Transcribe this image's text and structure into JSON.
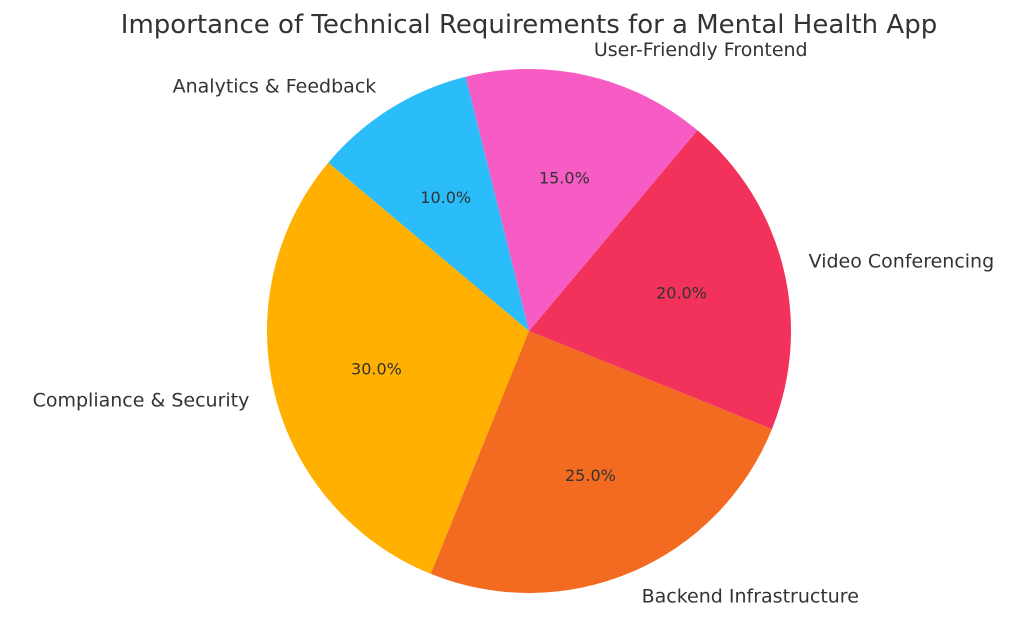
{
  "chart_data": {
    "type": "pie",
    "title": "Importance of Technical Requirements for a Mental Health App",
    "start_angle_deg": 140,
    "direction": "counterclockwise",
    "slices": [
      {
        "label": "Compliance & Security",
        "value": 30.0,
        "pct_label": "30.0%",
        "color": "#FFB000"
      },
      {
        "label": "Backend Infrastructure",
        "value": 25.0,
        "pct_label": "25.0%",
        "color": "#F26B21"
      },
      {
        "label": "Video Conferencing",
        "value": 20.0,
        "pct_label": "20.0%",
        "color": "#F2325A"
      },
      {
        "label": "User-Friendly Frontend",
        "value": 15.0,
        "pct_label": "15.0%",
        "color": "#F75BC4"
      },
      {
        "label": "Analytics & Feedback",
        "value": 10.0,
        "pct_label": "10.0%",
        "color": "#2BBDFA"
      }
    ]
  }
}
